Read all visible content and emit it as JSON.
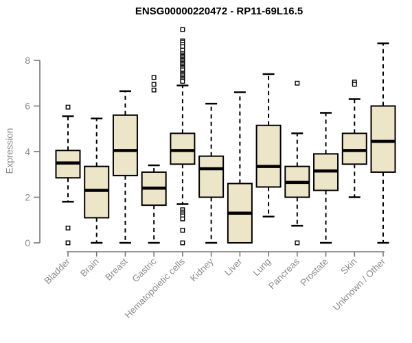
{
  "chart": {
    "title": "ENSG00000220472 - RP11-69L16.5",
    "ylabel": "Expression"
  },
  "chart_data": {
    "type": "boxplot",
    "title": "ENSG00000220472 - RP11-69L16.5",
    "xlabel": "",
    "ylabel": "Expression",
    "ylim": [
      0,
      8
    ],
    "yticks": [
      0,
      2,
      4,
      6,
      8
    ],
    "grid": false,
    "legend": "none",
    "categories": [
      "Bladder",
      "Brain",
      "Breast",
      "Gastric",
      "Hematopoietic cells",
      "Kidney",
      "Liver",
      "Lung",
      "Pancreas",
      "Prostate",
      "Skin",
      "Unknown / Other"
    ],
    "boxes": [
      {
        "category": "Bladder",
        "whisker_low": 1.8,
        "q1": 2.85,
        "median": 3.5,
        "q3": 4.05,
        "whisker_high": 5.55,
        "outliers": [
          5.95,
          0.65,
          0.0
        ]
      },
      {
        "category": "Brain",
        "whisker_low": 0.0,
        "q1": 1.1,
        "median": 2.3,
        "q3": 3.35,
        "whisker_high": 5.45,
        "outliers": []
      },
      {
        "category": "Breast",
        "whisker_low": 0.0,
        "q1": 2.95,
        "median": 4.05,
        "q3": 5.6,
        "whisker_high": 6.65,
        "outliers": []
      },
      {
        "category": "Gastric",
        "whisker_low": 0.0,
        "q1": 1.65,
        "median": 2.4,
        "q3": 3.1,
        "whisker_high": 3.4,
        "outliers": [
          7.25,
          6.95,
          6.7
        ]
      },
      {
        "category": "Hematopoietic cells",
        "whisker_low": 1.7,
        "q1": 3.45,
        "median": 4.05,
        "q3": 4.8,
        "whisker_high": 6.9,
        "outliers": [
          9.35,
          8.85,
          8.78,
          8.7,
          8.6,
          8.45,
          8.3,
          8.24,
          8.18,
          8.12,
          8.06,
          8.0,
          7.94,
          7.88,
          7.82,
          7.76,
          7.7,
          7.64,
          7.58,
          7.45,
          7.4,
          7.33,
          7.27,
          7.2,
          7.14,
          7.08,
          1.45,
          1.35,
          1.27,
          1.18,
          1.05,
          0.55,
          0.0
        ]
      },
      {
        "category": "Kidney",
        "whisker_low": 0.0,
        "q1": 2.0,
        "median": 3.25,
        "q3": 3.8,
        "whisker_high": 6.1,
        "outliers": []
      },
      {
        "category": "Liver",
        "whisker_low": 0.0,
        "q1": 0.0,
        "median": 1.3,
        "q3": 2.6,
        "whisker_high": 6.6,
        "outliers": []
      },
      {
        "category": "Lung",
        "whisker_low": 1.15,
        "q1": 2.45,
        "median": 3.35,
        "q3": 5.15,
        "whisker_high": 7.4,
        "outliers": []
      },
      {
        "category": "Pancreas",
        "whisker_low": 0.75,
        "q1": 2.0,
        "median": 2.65,
        "q3": 3.35,
        "whisker_high": 4.8,
        "outliers": [
          7.0,
          0.0
        ]
      },
      {
        "category": "Prostate",
        "whisker_low": 0.0,
        "q1": 2.3,
        "median": 3.15,
        "q3": 3.9,
        "whisker_high": 5.7,
        "outliers": []
      },
      {
        "category": "Skin",
        "whisker_low": 2.0,
        "q1": 3.45,
        "median": 4.05,
        "q3": 4.8,
        "whisker_high": 6.3,
        "outliers": [
          7.05,
          6.95
        ]
      },
      {
        "category": "Unknown / Other",
        "whisker_low": 0.0,
        "q1": 3.1,
        "median": 4.45,
        "q3": 6.0,
        "whisker_high": 8.75,
        "outliers": []
      }
    ],
    "style": {
      "box_fill": "#ece5c8",
      "box_stroke": "#000000",
      "median_color": "#000000",
      "whisker_color": "#000000",
      "outlier_fill": "#ffffff",
      "axis_color": "#777777",
      "label_color": "#8c8c8c",
      "title_color": "#000000",
      "background": "#ffffff"
    }
  }
}
